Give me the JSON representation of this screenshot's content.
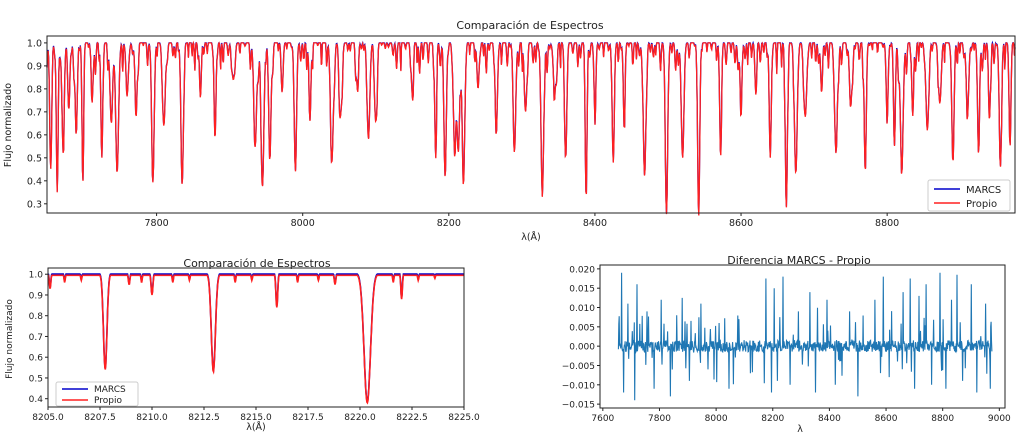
{
  "chart_data": [
    {
      "type": "line",
      "id": "top",
      "title": "Comparación de Espectros",
      "xlabel": "λ(Å)",
      "ylabel": "Flujo normalizado",
      "xlim": [
        7650,
        8975
      ],
      "ylim": [
        0.26,
        1.03
      ],
      "xticks": [
        7800,
        8000,
        8200,
        8400,
        8600,
        8800
      ],
      "xtick_labels": [
        "7800",
        "8000",
        "8200",
        "8400",
        "8600",
        "8800"
      ],
      "yticks": [
        0.3,
        0.4,
        0.5,
        0.6,
        0.7,
        0.8,
        0.9,
        1.0
      ],
      "ytick_labels": [
        "0.3",
        "0.4",
        "0.5",
        "0.6",
        "0.7",
        "0.8",
        "0.9",
        "1.0"
      ],
      "legend_position": "lower-right",
      "grid": false,
      "series": [
        {
          "name": "MARCS",
          "color": "#0000cc"
        },
        {
          "name": "Propio",
          "color": "#ff2020"
        }
      ],
      "absorption_lines": [
        [
          7655,
          0.45
        ],
        [
          7664,
          0.35
        ],
        [
          7672,
          0.55
        ],
        [
          7680,
          0.72
        ],
        [
          7690,
          0.6
        ],
        [
          7699,
          0.42
        ],
        [
          7712,
          0.78
        ],
        [
          7725,
          0.5
        ],
        [
          7738,
          0.66
        ],
        [
          7746,
          0.44
        ],
        [
          7760,
          0.82
        ],
        [
          7772,
          0.72
        ],
        [
          7795,
          0.4
        ],
        [
          7810,
          0.64
        ],
        [
          7835,
          0.38
        ],
        [
          7860,
          0.76
        ],
        [
          7880,
          0.58
        ],
        [
          7905,
          0.84
        ],
        [
          7935,
          0.55
        ],
        [
          7945,
          0.38
        ],
        [
          7955,
          0.52
        ],
        [
          7972,
          0.8
        ],
        [
          7990,
          0.45
        ],
        [
          8010,
          0.68
        ],
        [
          8040,
          0.5
        ],
        [
          8052,
          0.7
        ],
        [
          8075,
          0.8
        ],
        [
          8090,
          0.58
        ],
        [
          8100,
          0.66
        ],
        [
          8150,
          0.78
        ],
        [
          8182,
          0.5
        ],
        [
          8195,
          0.42
        ],
        [
          8208,
          0.54
        ],
        [
          8213,
          0.53
        ],
        [
          8220,
          0.38
        ],
        [
          8240,
          0.8
        ],
        [
          8265,
          0.64
        ],
        [
          8290,
          0.55
        ],
        [
          8305,
          0.7
        ],
        [
          8328,
          0.33
        ],
        [
          8345,
          0.8
        ],
        [
          8360,
          0.5
        ],
        [
          8388,
          0.32
        ],
        [
          8400,
          0.7
        ],
        [
          8425,
          0.52
        ],
        [
          8440,
          0.66
        ],
        [
          8468,
          0.42
        ],
        [
          8498,
          0.28
        ],
        [
          8520,
          0.5
        ],
        [
          8542,
          0.28
        ],
        [
          8572,
          0.56
        ],
        [
          8600,
          0.75
        ],
        [
          8620,
          0.8
        ],
        [
          8640,
          0.5
        ],
        [
          8662,
          0.28
        ],
        [
          8675,
          0.43
        ],
        [
          8688,
          0.68
        ],
        [
          8710,
          0.84
        ],
        [
          8730,
          0.52
        ],
        [
          8750,
          0.72
        ],
        [
          8770,
          0.48
        ],
        [
          8800,
          0.7
        ],
        [
          8810,
          0.55
        ],
        [
          8820,
          0.45
        ],
        [
          8835,
          0.68
        ],
        [
          8855,
          0.62
        ],
        [
          8872,
          0.74
        ],
        [
          8890,
          0.48
        ],
        [
          8910,
          0.7
        ],
        [
          8925,
          0.56
        ],
        [
          8940,
          0.66
        ],
        [
          8955,
          0.46
        ],
        [
          8968,
          0.6
        ]
      ]
    },
    {
      "type": "line",
      "id": "bottom-left",
      "title": "Comparación de Espectros",
      "xlabel": "λ(Å)",
      "ylabel": "Flujo normalizado",
      "xlim": [
        8205.0,
        8225.0
      ],
      "ylim": [
        0.36,
        1.03
      ],
      "xticks": [
        8205.0,
        8207.5,
        8210.0,
        8212.5,
        8215.0,
        8217.5,
        8220.0,
        8222.5,
        8225.0
      ],
      "xtick_labels": [
        "8205.0",
        "8207.5",
        "8210.0",
        "8212.5",
        "8215.0",
        "8217.5",
        "8220.0",
        "8222.5",
        "8225.0"
      ],
      "yticks": [
        0.4,
        0.5,
        0.6,
        0.7,
        0.8,
        0.9,
        1.0
      ],
      "ytick_labels": [
        "0.4",
        "0.5",
        "0.6",
        "0.7",
        "0.8",
        "0.9",
        "1.0"
      ],
      "legend_position": "lower-left",
      "grid": false,
      "series": [
        {
          "name": "MARCS",
          "color": "#0000cc"
        },
        {
          "name": "Propio",
          "color": "#ff2020"
        }
      ],
      "absorption_lines": [
        [
          8205.1,
          0.93,
          0.05
        ],
        [
          8205.8,
          0.96,
          0.04
        ],
        [
          8206.6,
          0.97,
          0.04
        ],
        [
          8207.75,
          0.54,
          0.12
        ],
        [
          8208.9,
          0.95,
          0.05
        ],
        [
          8209.5,
          0.96,
          0.04
        ],
        [
          8210.0,
          0.9,
          0.06
        ],
        [
          8211.0,
          0.96,
          0.04
        ],
        [
          8211.8,
          0.97,
          0.04
        ],
        [
          8212.95,
          0.53,
          0.14
        ],
        [
          8214.0,
          0.96,
          0.04
        ],
        [
          8214.8,
          0.97,
          0.04
        ],
        [
          8216.0,
          0.84,
          0.06
        ],
        [
          8217.0,
          0.96,
          0.04
        ],
        [
          8218.0,
          0.97,
          0.04
        ],
        [
          8218.8,
          0.95,
          0.05
        ],
        [
          8220.35,
          0.38,
          0.22
        ],
        [
          8221.6,
          0.96,
          0.04
        ],
        [
          8222.0,
          0.88,
          0.05
        ],
        [
          8222.8,
          0.97,
          0.04
        ],
        [
          8223.6,
          0.98,
          0.04
        ]
      ]
    },
    {
      "type": "line",
      "id": "bottom-right",
      "title": "Diferencia MARCS - Propio",
      "xlabel": "λ",
      "ylabel": "",
      "xlim": [
        7590,
        9020
      ],
      "ylim": [
        -0.016,
        0.021
      ],
      "xticks": [
        7600,
        7800,
        8000,
        8200,
        8400,
        8600,
        8800,
        9000
      ],
      "xtick_labels": [
        "7600",
        "7800",
        "8000",
        "8200",
        "8400",
        "8600",
        "8800",
        "9000"
      ],
      "yticks": [
        -0.015,
        -0.01,
        -0.005,
        0.0,
        0.005,
        0.01,
        0.015,
        0.02
      ],
      "ytick_labels": [
        "−0.015",
        "−0.010",
        "−0.005",
        "0.000",
        "0.005",
        "0.010",
        "0.015",
        "0.020"
      ],
      "grid": false,
      "series": [
        {
          "name": "",
          "color": "#1f77b4"
        }
      ],
      "x_range_data": [
        7655,
        8975
      ],
      "spikes": [
        [
          7665,
          0.019
        ],
        [
          7672,
          -0.012
        ],
        [
          7688,
          0.011
        ],
        [
          7712,
          -0.014
        ],
        [
          7720,
          0.016
        ],
        [
          7755,
          0.009
        ],
        [
          7780,
          -0.011
        ],
        [
          7805,
          0.012
        ],
        [
          7838,
          -0.013
        ],
        [
          7860,
          0.008
        ],
        [
          7880,
          0.0125
        ],
        [
          7905,
          -0.009
        ],
        [
          7945,
          0.011
        ],
        [
          7970,
          -0.006
        ],
        [
          8010,
          0.006
        ],
        [
          8045,
          -0.011
        ],
        [
          8080,
          0.007
        ],
        [
          8120,
          -0.007
        ],
        [
          8175,
          0.0175
        ],
        [
          8195,
          -0.012
        ],
        [
          8205,
          0.015
        ],
        [
          8215,
          -0.009
        ],
        [
          8235,
          0.018
        ],
        [
          8260,
          -0.01
        ],
        [
          8290,
          0.009
        ],
        [
          8330,
          0.014
        ],
        [
          8350,
          -0.012
        ],
        [
          8390,
          0.012
        ],
        [
          8420,
          -0.01
        ],
        [
          8470,
          0.009
        ],
        [
          8500,
          -0.013
        ],
        [
          8560,
          0.012
        ],
        [
          8590,
          0.018
        ],
        [
          8610,
          -0.008
        ],
        [
          8660,
          0.014
        ],
        [
          8685,
          0.0175
        ],
        [
          8700,
          -0.011
        ],
        [
          8715,
          0.013
        ],
        [
          8740,
          0.016
        ],
        [
          8760,
          -0.01
        ],
        [
          8790,
          0.019
        ],
        [
          8810,
          -0.011
        ],
        [
          8830,
          0.012
        ],
        [
          8850,
          0.0185
        ],
        [
          8870,
          -0.009
        ],
        [
          8900,
          0.016
        ],
        [
          8920,
          -0.012
        ],
        [
          8950,
          0.011
        ],
        [
          8968,
          -0.011
        ]
      ]
    }
  ]
}
